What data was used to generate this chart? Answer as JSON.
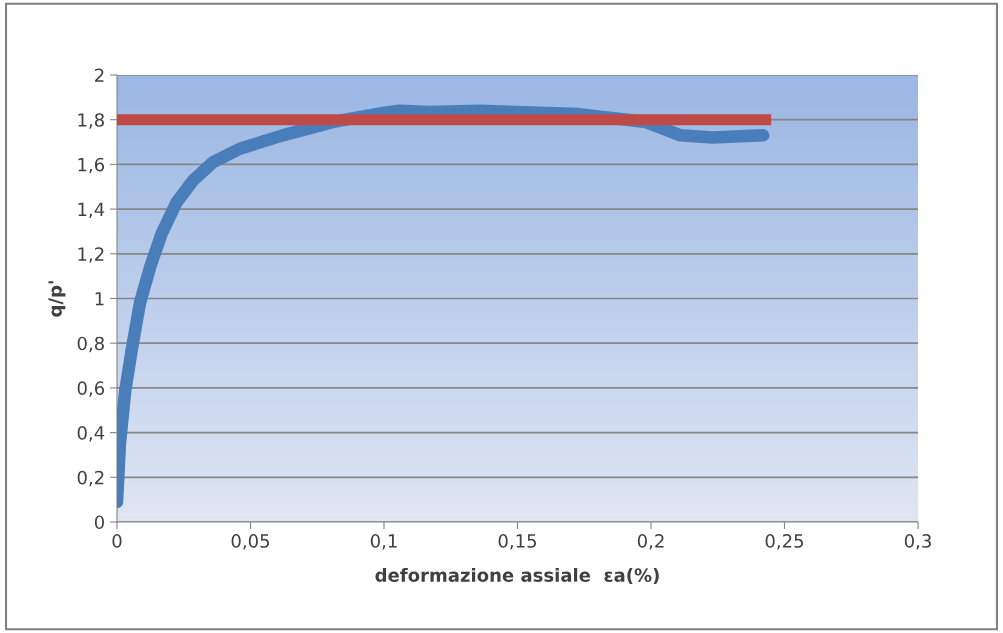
{
  "chart_data": {
    "type": "line",
    "xlabel": "deformazione assiale  εa(%)",
    "ylabel": "q/p'",
    "xlim": [
      0,
      0.3
    ],
    "ylim": [
      0,
      2
    ],
    "xticks": [
      0,
      {
        "value": 0.05,
        "label": "0,05"
      },
      {
        "value": 0.1,
        "label": "0,1"
      },
      {
        "value": 0.15,
        "label": "0,15"
      },
      {
        "value": 0.2,
        "label": "0,2"
      },
      {
        "value": 0.25,
        "label": "0,25"
      },
      {
        "value": 0.3,
        "label": "0,3"
      }
    ],
    "yticks": [
      0,
      {
        "value": 0.2,
        "label": "0,2"
      },
      {
        "value": 0.4,
        "label": "0,4"
      },
      {
        "value": 0.6,
        "label": "0,6"
      },
      {
        "value": 0.8,
        "label": "0,8"
      },
      1,
      {
        "value": 1.2,
        "label": "1,2"
      },
      {
        "value": 1.4,
        "label": "1,4"
      },
      {
        "value": 1.6,
        "label": "1,6"
      },
      {
        "value": 1.8,
        "label": "1,8"
      },
      2
    ],
    "grid": "y",
    "series": [
      {
        "color": "#4a7ebb",
        "x": [
          0,
          0.0011,
          0.003,
          0.0055,
          0.0086,
          0.0124,
          0.0167,
          0.0223,
          0.0286,
          0.036,
          0.046,
          0.062,
          0.081,
          0.0996,
          0.106,
          0.117,
          0.136,
          0.173,
          0.198,
          0.211,
          0.223,
          0.242
        ],
        "values": [
          0.09,
          0.35,
          0.58,
          0.77,
          0.98,
          1.14,
          1.29,
          1.43,
          1.53,
          1.61,
          1.67,
          1.73,
          1.79,
          1.83,
          1.84,
          1.835,
          1.84,
          1.825,
          1.79,
          1.73,
          1.72,
          1.73
        ]
      },
      {
        "color": "#be4b48",
        "x": [
          0,
          0.245
        ],
        "values": [
          1.8,
          1.8
        ]
      }
    ]
  }
}
